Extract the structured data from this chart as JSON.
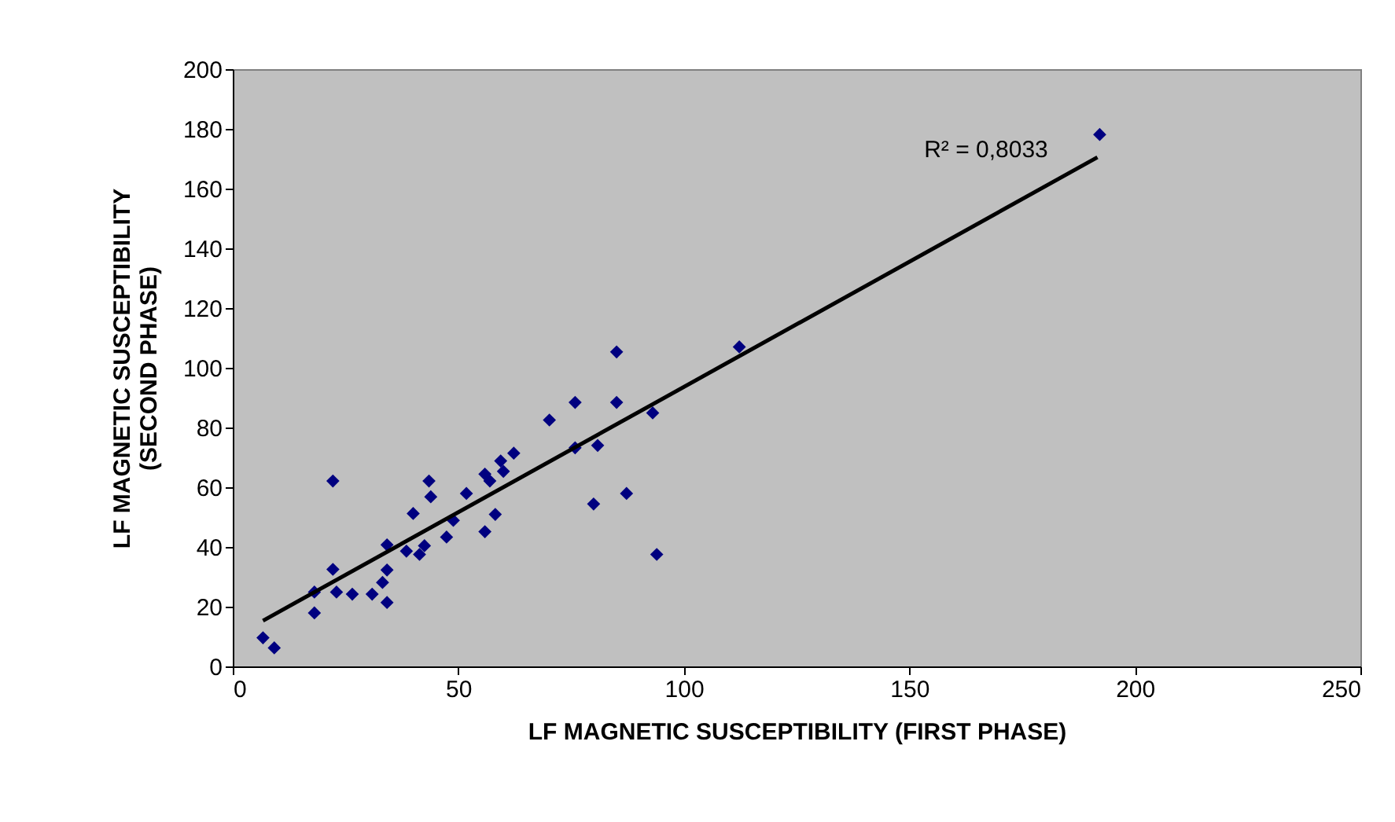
{
  "chart_data": {
    "type": "scatter",
    "xlabel": "LF MAGNETIC SUSCEPTIBILITY (FIRST PHASE)",
    "ylabel": "LF MAGNETIC SUSCEPTIBILITY\n(SECOND PHASE)",
    "xlim": [
      0,
      250
    ],
    "xticks": [
      0,
      50,
      100,
      150,
      200,
      250
    ],
    "ylim": [
      0,
      200
    ],
    "yticks": [
      0,
      20,
      40,
      60,
      80,
      100,
      120,
      140,
      160,
      180,
      200
    ],
    "grid": false,
    "series": [
      {
        "color": "#000080",
        "marker": "diamond",
        "x": [
          6.7,
          9.2,
          18.1,
          18.1,
          22.2,
          22.2,
          23,
          26.5,
          30.9,
          33.2,
          34.2,
          34.2,
          34.2,
          38.5,
          40,
          41.4,
          42.5,
          43.5,
          43.9,
          47.4,
          48.9,
          51.8,
          55.9,
          55.9,
          57,
          58.2,
          59.4,
          60,
          62.3,
          70.2,
          75.9,
          75.9,
          80.9,
          80,
          85.1,
          85.1,
          87.3,
          93.1,
          94,
          112.3,
          192.2
        ],
        "values": [
          9.6,
          6.2,
          24.9,
          17.9,
          62.1,
          32.5,
          24.9,
          24.2,
          24.2,
          28.1,
          32.3,
          21.4,
          40.7,
          38.6,
          51.2,
          37.5,
          40.4,
          62.1,
          56.8,
          43.3,
          48.9,
          57.9,
          45.1,
          64.4,
          62.1,
          50.9,
          68.8,
          65.3,
          71.4,
          82.5,
          88.4,
          73.2,
          74,
          54.4,
          105.3,
          88.4,
          57.9,
          84.9,
          37.5,
          107,
          178.1
        ]
      },
      {
        "type": "line",
        "color": "#000000",
        "marker": "none",
        "line_style": "solid",
        "x": [
          6.7,
          191.7
        ],
        "values": [
          15.3,
          170.5
        ]
      }
    ],
    "annotations": [
      "R² = 0,8033"
    ]
  }
}
